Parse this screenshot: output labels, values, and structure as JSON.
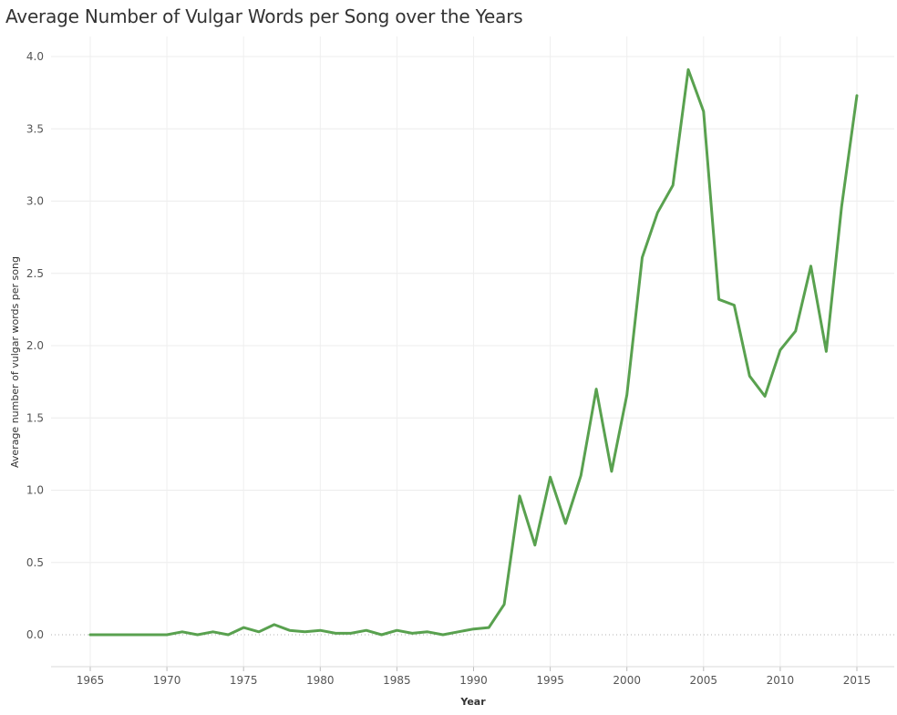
{
  "chart_data": {
    "type": "line",
    "title": "Average Number of Vulgar Words per Song over the Years",
    "xlabel": "Year",
    "ylabel": "Average number of vulgar words per song",
    "xlim": [
      1962.5,
      1967.0
    ],
    "ylim": [
      -0.2,
      4.1
    ],
    "xticks": [
      1965,
      1970,
      1975,
      1980,
      1985,
      1990,
      1995,
      2000,
      2005,
      2010,
      2015
    ],
    "yticks": [
      "0.0",
      "0.5",
      "1.0",
      "1.5",
      "2.0",
      "2.5",
      "3.0",
      "3.5",
      "4.0"
    ],
    "grid": true,
    "series": [
      {
        "color": "#59a14f",
        "x": [
          1965,
          1966,
          1967,
          1968,
          1969,
          1970,
          1971,
          1972,
          1973,
          1974,
          1975,
          1976,
          1977,
          1978,
          1979,
          1980,
          1981,
          1982,
          1983,
          1984,
          1985,
          1986,
          1987,
          1988,
          1989,
          1990,
          1991,
          1992,
          1993,
          1994,
          1995,
          1996,
          1997,
          1998,
          1999,
          2000,
          2001,
          2002,
          2003,
          2004,
          2005,
          2006,
          2007,
          2008,
          2009,
          2010,
          2011,
          2012,
          2013,
          2014,
          2015
        ],
        "values": [
          0.0,
          0.0,
          0.0,
          0.0,
          0.0,
          0.0,
          0.02,
          0.0,
          0.02,
          0.0,
          0.05,
          0.02,
          0.07,
          0.03,
          0.02,
          0.03,
          0.01,
          0.01,
          0.03,
          0.0,
          0.03,
          0.01,
          0.02,
          0.0,
          0.02,
          0.04,
          0.05,
          0.21,
          0.96,
          0.62,
          1.09,
          0.77,
          1.1,
          1.7,
          1.13,
          1.66,
          2.61,
          2.92,
          3.11,
          3.91,
          3.62,
          2.32,
          2.28,
          1.79,
          1.65,
          1.97,
          2.1,
          2.55,
          1.96,
          2.96,
          3.73
        ]
      }
    ]
  }
}
